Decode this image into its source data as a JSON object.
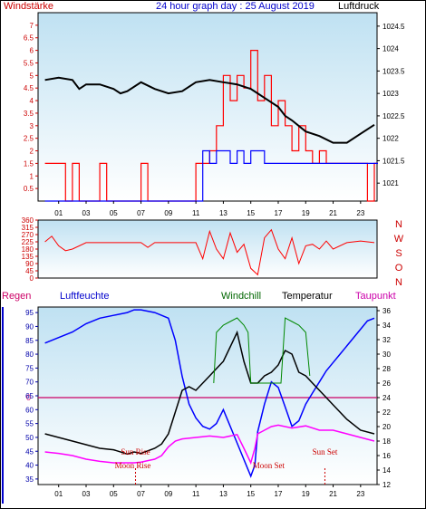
{
  "header": {
    "wind_label": "Windstärke",
    "title": "24 hour graph day : 25 August 2019",
    "pressure_label": "Luftdruck"
  },
  "panel3": {
    "rain_label": "Regen",
    "humidity_label": "Luftfeuchte",
    "windchill_label": "Windchill",
    "temperature_label": "Temperatur",
    "dewpoint_label": "Taupunkt",
    "rain_zero_label": "0"
  },
  "colors": {
    "wind": "#ff0000",
    "gust": "#0000ff",
    "pressure": "#000000",
    "direction": "#ff0000",
    "temperature": "#000000",
    "humidity": "#0000ff",
    "windchill": "#008800",
    "dewpoint": "#ff00ff",
    "rain": "#cc0066"
  },
  "chart_data": [
    {
      "type": "line",
      "title": "24 hour graph day : 25 August 2019",
      "xlabel": "",
      "x_ticks": [
        "01",
        "03",
        "05",
        "07",
        "09",
        "11",
        "13",
        "15",
        "17",
        "19",
        "21",
        "23"
      ],
      "xlim": [
        23.5,
        48.2
      ],
      "y_left": {
        "label": "Windstärke",
        "ylim": [
          0,
          7.5
        ],
        "ticks": [
          0.5,
          1,
          1.5,
          2,
          2.5,
          3,
          3.5,
          4,
          4.5,
          5,
          5.5,
          6,
          6.5,
          7
        ]
      },
      "y_right": {
        "label": "Luftdruck",
        "ylim": [
          1020.6,
          1024.8
        ],
        "ticks": [
          1021,
          1021.5,
          1022,
          1022.5,
          1023,
          1023.5,
          1024,
          1024.5
        ]
      },
      "series": [
        {
          "name": "Luftdruck",
          "axis": "right",
          "x": [
            24.0,
            25.0,
            26.0,
            26.5,
            27.0,
            28.0,
            29.0,
            29.5,
            30.0,
            31.0,
            32.0,
            33.0,
            34.0,
            35.0,
            36.0,
            37.0,
            38.0,
            39.0,
            39.5,
            40.0,
            41.0,
            41.5,
            42.0,
            43.0,
            44.0,
            45.0,
            46.0,
            47.0,
            48.0
          ],
          "y": [
            1023.3,
            1023.35,
            1023.3,
            1023.1,
            1023.2,
            1023.2,
            1023.1,
            1023.0,
            1023.05,
            1023.25,
            1023.1,
            1023.0,
            1023.05,
            1023.25,
            1023.3,
            1023.25,
            1023.2,
            1023.1,
            1023.0,
            1022.9,
            1022.7,
            1022.5,
            1022.4,
            1022.15,
            1022.05,
            1021.9,
            1021.9,
            1022.1,
            1022.3
          ]
        },
        {
          "name": "Windstärke",
          "axis": "left",
          "x": [
            24.0,
            24.5,
            25.0,
            25.5,
            26.0,
            26.5,
            27.0,
            27.5,
            28.0,
            28.5,
            29.0,
            29.5,
            30.0,
            30.5,
            31.0,
            31.5,
            32.0,
            32.5,
            33.0,
            33.5,
            34.0,
            34.5,
            35.0,
            35.5,
            36.0,
            36.5,
            37.0,
            37.5,
            38.0,
            38.5,
            39.0,
            39.5,
            40.0,
            40.5,
            41.0,
            41.5,
            42.0,
            42.5,
            43.0,
            43.5,
            44.0,
            44.5,
            45.0,
            45.5,
            46.0,
            46.5,
            47.0,
            47.5,
            48.0
          ],
          "y": [
            1.5,
            1.5,
            1.5,
            0,
            1.5,
            0,
            0,
            0,
            1.5,
            0,
            0,
            0,
            0,
            0,
            1.5,
            0,
            0,
            0,
            0,
            0,
            0,
            0,
            1.5,
            1.5,
            2,
            3,
            5,
            4,
            5,
            4.5,
            6,
            4,
            5,
            3,
            4,
            3,
            2,
            3,
            2,
            1.5,
            2,
            1.5,
            1.5,
            1.5,
            1.5,
            1.5,
            1.5,
            0,
            1.5
          ]
        },
        {
          "name": "Böen",
          "axis": "left",
          "x": [
            24.0,
            35.0,
            35.5,
            36.0,
            36.5,
            37.0,
            37.5,
            38.0,
            38.5,
            39.0,
            39.5,
            40.0,
            40.5,
            41.0,
            41.5,
            42.0,
            42.5,
            43.0,
            43.5,
            44.0,
            44.5,
            45.0,
            45.5,
            46.0,
            46.5,
            47.0,
            47.5,
            48.0
          ],
          "y": [
            0,
            0,
            2,
            1.5,
            2,
            2,
            1.5,
            2,
            1.5,
            2,
            2,
            1.5,
            1.5,
            1.5,
            1.5,
            1.5,
            1.5,
            1.5,
            1.5,
            1.5,
            1.5,
            1.5,
            1.5,
            1.5,
            1.5,
            1.5,
            1.5,
            1.5
          ]
        }
      ]
    },
    {
      "type": "line",
      "title": "",
      "x_ticks": [
        "01",
        "03",
        "05",
        "07",
        "09",
        "11",
        "13",
        "15",
        "17",
        "19",
        "21",
        "23"
      ],
      "xlim": [
        23.5,
        48.2
      ],
      "y_left": {
        "label": "",
        "ylim": [
          0,
          360
        ],
        "ticks": [
          0,
          45,
          90,
          135,
          180,
          225,
          270,
          315,
          360
        ]
      },
      "compass_labels": [
        "N",
        "W",
        "S",
        "O",
        "N"
      ],
      "series": [
        {
          "name": "Windrichtung",
          "x": [
            24.0,
            24.5,
            25.0,
            25.5,
            26.0,
            27.0,
            28.0,
            29.0,
            30.0,
            31.0,
            31.5,
            32.0,
            33.0,
            34.0,
            35.0,
            35.5,
            36.0,
            36.5,
            37.0,
            37.5,
            38.0,
            38.5,
            39.0,
            39.5,
            40.0,
            40.5,
            41.0,
            41.5,
            42.0,
            42.5,
            43.0,
            43.5,
            44.0,
            44.5,
            45.0,
            46.0,
            47.0,
            48.0
          ],
          "y": [
            225,
            260,
            200,
            170,
            180,
            220,
            220,
            220,
            220,
            220,
            190,
            220,
            220,
            220,
            220,
            120,
            290,
            180,
            120,
            280,
            160,
            210,
            60,
            20,
            250,
            300,
            180,
            120,
            250,
            90,
            200,
            210,
            180,
            230,
            180,
            220,
            230,
            220
          ]
        }
      ]
    },
    {
      "type": "line",
      "title": "",
      "x_ticks": [
        "01",
        "03",
        "05",
        "07",
        "09",
        "11",
        "13",
        "15",
        "17",
        "19",
        "21",
        "23"
      ],
      "xlim": [
        23.5,
        48.2
      ],
      "y_left": {
        "label": "Luftfeuchte",
        "ylim": [
          33.0,
          97.0
        ],
        "ticks": [
          35,
          40,
          45,
          50,
          55,
          60,
          65,
          70,
          75,
          80,
          85,
          90,
          95
        ]
      },
      "y_right": {
        "label": "Temperatur",
        "ylim": [
          12.0,
          36.5
        ],
        "ticks": [
          12,
          14,
          16,
          18,
          20,
          22,
          24,
          26,
          28,
          30,
          32,
          34,
          36
        ]
      },
      "rain_zero_value": 24,
      "events": [
        {
          "label": "Sun Rise",
          "x": 30.6
        },
        {
          "label": "Sun Set",
          "x": 44.4
        },
        {
          "label": "Moon Rise",
          "x": 30.4
        },
        {
          "label": "Moon Set",
          "x": 40.3
        }
      ],
      "event_text": {
        "sun_rise": "Sun Rise",
        "sun_set": "Sun Set",
        "moon_rise": "Moon Rise",
        "moon_set": "Moon Set"
      },
      "series": [
        {
          "name": "Luftfeuchte",
          "axis": "left",
          "x": [
            24.0,
            25.0,
            26.0,
            27.0,
            28.0,
            29.0,
            30.0,
            30.5,
            31.0,
            32.0,
            32.5,
            33.0,
            33.5,
            34.0,
            34.5,
            35.0,
            35.5,
            36.0,
            36.5,
            37.0,
            37.5,
            38.0,
            38.5,
            39.0,
            39.3,
            39.5,
            40.0,
            40.5,
            41.0,
            41.5,
            42.0,
            42.5,
            43.0,
            43.5,
            44.0,
            44.5,
            45.0,
            45.5,
            46.0,
            47.0,
            47.5,
            48.0
          ],
          "y": [
            84,
            86,
            88,
            91,
            93,
            94,
            95,
            96,
            96,
            95,
            94,
            93,
            85,
            72,
            62,
            57,
            54,
            53,
            55,
            60,
            54,
            48,
            42,
            36,
            40,
            52,
            62,
            70,
            68,
            61,
            54,
            56,
            62,
            66,
            70,
            74,
            77,
            80,
            83,
            89,
            92,
            93
          ]
        },
        {
          "name": "Temperatur",
          "axis": "right",
          "x": [
            24.0,
            25.0,
            26.0,
            27.0,
            28.0,
            29.0,
            30.0,
            30.5,
            31.0,
            32.0,
            32.5,
            33.0,
            33.5,
            34.0,
            34.5,
            35.0,
            35.5,
            36.0,
            36.5,
            37.0,
            37.5,
            38.0,
            38.5,
            39.0,
            39.5,
            40.0,
            40.5,
            41.0,
            41.5,
            42.0,
            42.5,
            43.0,
            43.5,
            44.0,
            44.5,
            45.0,
            45.5,
            46.0,
            47.0,
            48.0
          ],
          "y": [
            19,
            18.5,
            18,
            17.5,
            17,
            16.8,
            16.2,
            16.5,
            16.3,
            17,
            17.6,
            19,
            22,
            25,
            25.5,
            25,
            26,
            27,
            28,
            29,
            31,
            33,
            29,
            26,
            26,
            27,
            27.5,
            28.5,
            30.5,
            30,
            27.5,
            27,
            26,
            25,
            24,
            23,
            22,
            21,
            19.5,
            19
          ]
        },
        {
          "name": "Windchill",
          "axis": "right",
          "x": [
            36.3,
            36.5,
            37.0,
            37.5,
            38.0,
            38.5,
            38.8,
            39.0,
            39.3,
            41.2,
            41.5,
            42.0,
            42.5,
            43.0,
            43.3
          ],
          "y": [
            26,
            33,
            34,
            34.5,
            35,
            34,
            33,
            26,
            26,
            26,
            35,
            34.5,
            34,
            33,
            27
          ]
        },
        {
          "name": "Taupunkt",
          "axis": "right",
          "x": [
            24.0,
            25.0,
            26.0,
            27.0,
            28.0,
            29.0,
            30.0,
            30.5,
            31.0,
            32.0,
            32.5,
            33.0,
            33.5,
            34.0,
            35.0,
            36.0,
            37.0,
            38.0,
            38.5,
            39.0,
            39.3,
            39.5,
            40.0,
            40.5,
            41.0,
            42.0,
            43.0,
            44.0,
            45.0,
            46.0,
            47.0,
            48.0
          ],
          "y": [
            16.5,
            16.3,
            16,
            15.5,
            15.2,
            15,
            15,
            15,
            15.1,
            15.5,
            16,
            17.2,
            18,
            18.3,
            18.5,
            18.7,
            18.5,
            18.9,
            17,
            15,
            17,
            19,
            19.5,
            20,
            20.2,
            19.8,
            20.1,
            19.5,
            19.5,
            19,
            18.5,
            18
          ]
        }
      ]
    }
  ]
}
